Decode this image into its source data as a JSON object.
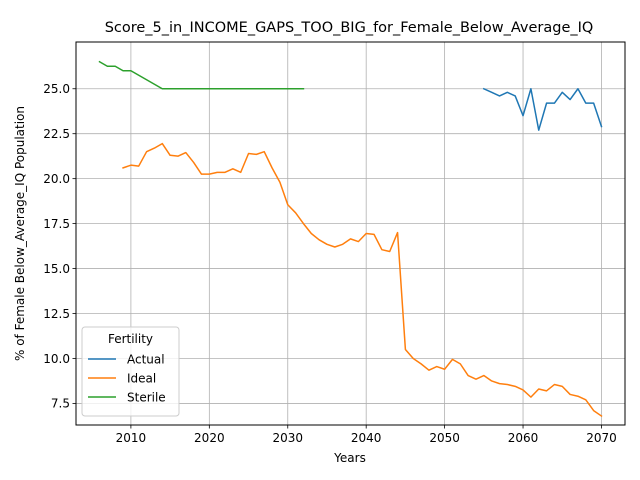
{
  "chart_data": {
    "type": "line",
    "title": "Score_5_in_INCOME_GAPS_TOO_BIG_for_Female_Below_Average_IQ",
    "xlabel": "Years",
    "ylabel": "% of Female Below_Average_IQ Population",
    "xlim": [
      2003,
      2073
    ],
    "ylim": [
      6.3,
      27.6
    ],
    "xticks": [
      2010,
      2020,
      2030,
      2040,
      2050,
      2060,
      2070
    ],
    "yticks": [
      7.5,
      10.0,
      12.5,
      15.0,
      17.5,
      20.0,
      22.5,
      25.0
    ],
    "xtick_labels": [
      "2010",
      "2020",
      "2030",
      "2040",
      "2050",
      "2060",
      "2070"
    ],
    "ytick_labels": [
      "7.5",
      "10.0",
      "12.5",
      "15.0",
      "17.5",
      "20.0",
      "22.5",
      "25.0"
    ],
    "grid": true,
    "legend": {
      "title": "Fertility",
      "location": "lower-left"
    },
    "series": [
      {
        "name": "Actual",
        "color": "#1f77b4",
        "x": [
          2055,
          2056,
          2057,
          2058,
          2059,
          2060,
          2061,
          2062,
          2063,
          2064,
          2065,
          2066,
          2067,
          2068,
          2069,
          2070
        ],
        "y": [
          25.0,
          24.8,
          24.6,
          24.8,
          24.6,
          23.5,
          25.0,
          22.7,
          24.2,
          24.2,
          24.8,
          24.4,
          25.0,
          24.2,
          24.2,
          22.9
        ]
      },
      {
        "name": "Ideal",
        "color": "#ff7f0e",
        "x": [
          2009,
          2010,
          2011,
          2012,
          2013,
          2014,
          2015,
          2016,
          2017,
          2018,
          2019,
          2020,
          2021,
          2022,
          2023,
          2024,
          2025,
          2026,
          2027,
          2028,
          2029,
          2030,
          2031,
          2032,
          2033,
          2034,
          2035,
          2036,
          2037,
          2038,
          2039,
          2040,
          2041,
          2042,
          2043,
          2044,
          2045,
          2046,
          2047,
          2048,
          2049,
          2050,
          2051,
          2052,
          2053,
          2054,
          2055,
          2056,
          2057,
          2058,
          2059,
          2060,
          2061,
          2062,
          2063,
          2064,
          2065,
          2066,
          2067,
          2068,
          2069,
          2070
        ],
        "y": [
          20.6,
          20.75,
          20.7,
          21.5,
          21.7,
          21.95,
          21.3,
          21.25,
          21.45,
          20.9,
          20.25,
          20.25,
          20.35,
          20.35,
          20.55,
          20.35,
          21.4,
          21.35,
          21.5,
          20.6,
          19.8,
          18.55,
          18.1,
          17.5,
          16.95,
          16.6,
          16.35,
          16.2,
          16.35,
          16.65,
          16.5,
          16.95,
          16.9,
          16.05,
          15.95,
          17.0,
          10.5,
          10.0,
          9.7,
          9.35,
          9.55,
          9.4,
          9.95,
          9.7,
          9.05,
          8.85,
          9.05,
          8.75,
          8.6,
          8.55,
          8.45,
          8.25,
          7.85,
          8.3,
          8.2,
          8.55,
          8.45,
          8.0,
          7.9,
          7.7,
          7.1,
          6.8
        ]
      },
      {
        "name": "Sterile",
        "color": "#2ca02c",
        "x": [
          2006,
          2007,
          2008,
          2009,
          2010,
          2011,
          2012,
          2013,
          2014,
          2015,
          2016,
          2017,
          2018,
          2019,
          2020,
          2021,
          2022,
          2023,
          2024,
          2025,
          2026,
          2027,
          2028,
          2029,
          2030,
          2031,
          2032
        ],
        "y": [
          26.5,
          26.25,
          26.25,
          26.0,
          26.0,
          25.75,
          25.5,
          25.25,
          25.0,
          25.0,
          25.0,
          25.0,
          25.0,
          25.0,
          25.0,
          25.0,
          25.0,
          25.0,
          25.0,
          25.0,
          25.0,
          25.0,
          25.0,
          25.0,
          25.0,
          25.0,
          25.0
        ]
      }
    ]
  }
}
